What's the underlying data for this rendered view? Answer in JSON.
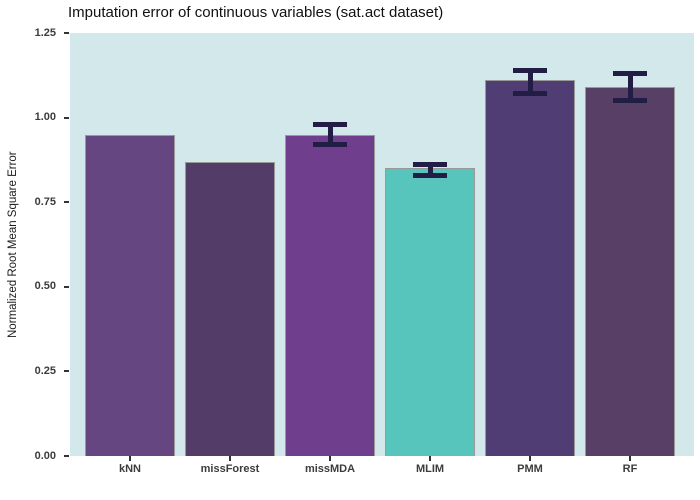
{
  "title": "Imputation error of continuous variables (sat.act dataset)",
  "ylabel": "Normalized Root Mean Square Error",
  "chart_data": {
    "type": "bar",
    "title": "Imputation error of continuous variables (sat.act dataset)",
    "ylabel": "Normalized Root Mean Square Error",
    "xlabel": "",
    "categories": [
      "kNN",
      "missForest",
      "missMDA",
      "MLIM",
      "PMM",
      "RF"
    ],
    "values": [
      0.95,
      0.87,
      0.95,
      0.85,
      1.11,
      1.09
    ],
    "error_bars": [
      null,
      null,
      {
        "lower": 0.92,
        "upper": 0.98
      },
      {
        "lower": 0.83,
        "upper": 0.86
      },
      {
        "lower": 1.07,
        "upper": 1.14
      },
      {
        "lower": 1.05,
        "upper": 1.13
      }
    ],
    "ylim": [
      0,
      1.25
    ],
    "yticks": [
      0.0,
      0.25,
      0.5,
      0.75,
      1.0,
      1.25
    ],
    "ytick_labels": [
      "0.00",
      "0.25",
      "0.50",
      "0.75",
      "1.00",
      "1.25"
    ],
    "grid": false,
    "legend": "none",
    "colors": {
      "panel_background": "#d3e8ea",
      "outer_background": "#ffffff",
      "bar_fills": [
        "#654680",
        "#533d68",
        "#6f3e8d",
        "#58c5bc",
        "#503d73",
        "#573f66"
      ],
      "bar_border": "#999999",
      "error_bar": "#221d44",
      "tick_text": "#3c3c3c",
      "title_text": "#111111"
    }
  }
}
